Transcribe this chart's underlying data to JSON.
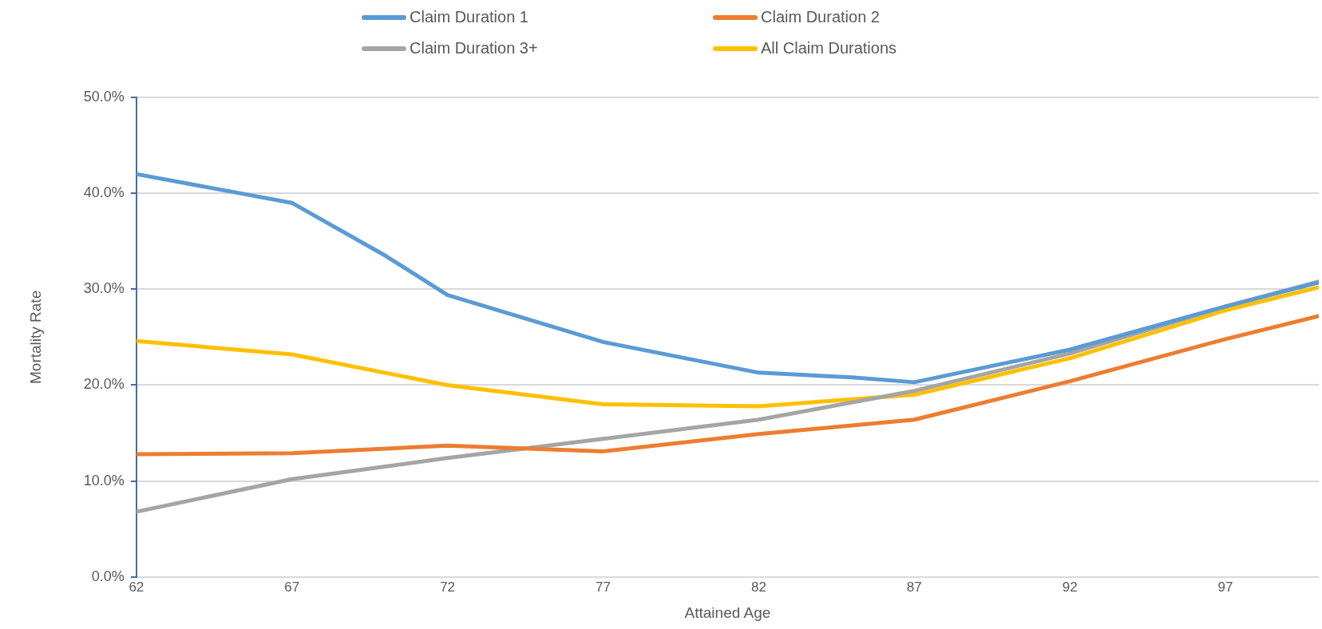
{
  "chart_data": {
    "type": "line",
    "xlabel": "Attained Age",
    "ylabel": "Mortality Rate",
    "legend": "top",
    "grid": "y",
    "marker": "none",
    "line_style": "solid",
    "xlim": [
      62,
      100
    ],
    "xticks": [
      62,
      67,
      72,
      77,
      82,
      87,
      92,
      97
    ],
    "ylim": [
      0,
      50
    ],
    "yticks": [
      {
        "value": 0,
        "label": "0.0%"
      },
      {
        "value": 10,
        "label": "10.0%"
      },
      {
        "value": 20,
        "label": "20.0%"
      },
      {
        "value": 30,
        "label": "30.0%"
      },
      {
        "value": 40,
        "label": "40.0%"
      },
      {
        "value": 50,
        "label": "50.0%"
      }
    ],
    "series": [
      {
        "name": "Claim Duration 1",
        "color": "#5b9bd5",
        "x": [
          62,
          67,
          70,
          72,
          77,
          82,
          85,
          87,
          92,
          97,
          100
        ],
        "values": [
          42.0,
          39.0,
          33.5,
          29.4,
          24.5,
          21.3,
          20.8,
          20.3,
          23.7,
          28.2,
          30.7
        ]
      },
      {
        "name": "Claim Duration 2",
        "color": "#ed7d31",
        "x": [
          62,
          67,
          72,
          77,
          82,
          87,
          92,
          97,
          100
        ],
        "values": [
          12.8,
          12.9,
          13.7,
          13.1,
          14.9,
          16.4,
          20.4,
          24.8,
          27.2
        ]
      },
      {
        "name": "Claim Duration 3+",
        "color": "#a5a5a5",
        "x": [
          62,
          67,
          72,
          77,
          82,
          87,
          92,
          97,
          100
        ],
        "values": [
          6.8,
          10.2,
          12.4,
          14.4,
          16.4,
          19.4,
          23.3,
          28.2,
          30.8
        ]
      },
      {
        "name": "All Claim Durations",
        "color": "#ffc000",
        "x": [
          62,
          67,
          72,
          77,
          82,
          87,
          92,
          97,
          100
        ],
        "values": [
          24.6,
          23.2,
          20.0,
          18.0,
          17.8,
          19.0,
          22.8,
          27.8,
          30.2
        ]
      }
    ]
  }
}
